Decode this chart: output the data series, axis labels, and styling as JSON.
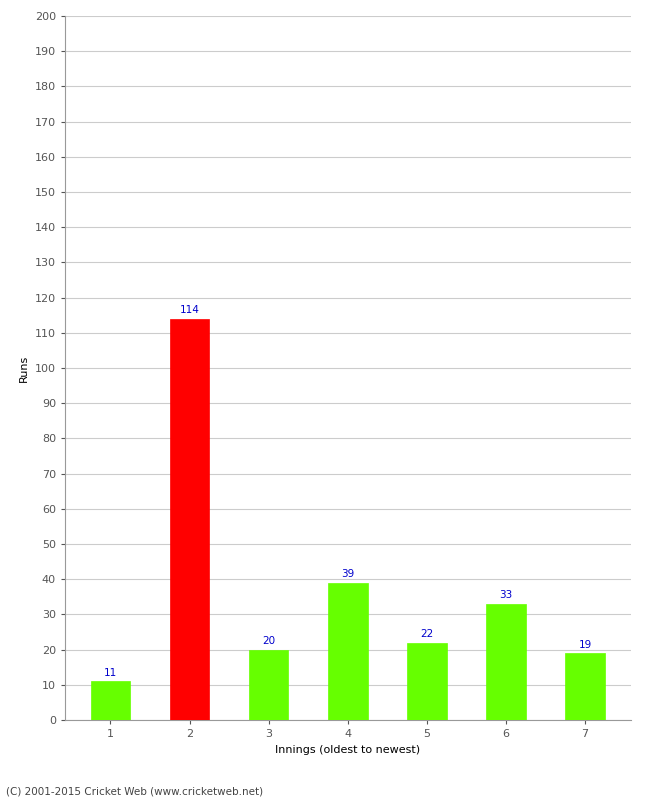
{
  "categories": [
    "1",
    "2",
    "3",
    "4",
    "5",
    "6",
    "7"
  ],
  "values": [
    11,
    114,
    20,
    39,
    22,
    33,
    19
  ],
  "bar_colors": [
    "#66ff00",
    "#ff0000",
    "#66ff00",
    "#66ff00",
    "#66ff00",
    "#66ff00",
    "#66ff00"
  ],
  "xlabel": "Innings (oldest to newest)",
  "ylabel": "Runs",
  "ylim": [
    0,
    200
  ],
  "yticks": [
    0,
    10,
    20,
    30,
    40,
    50,
    60,
    70,
    80,
    90,
    100,
    110,
    120,
    130,
    140,
    150,
    160,
    170,
    180,
    190,
    200
  ],
  "label_color": "#0000cc",
  "label_fontsize": 7.5,
  "axis_fontsize": 8,
  "xlabel_fontsize": 8,
  "ylabel_fontsize": 8,
  "background_color": "#ffffff",
  "grid_color": "#cccccc",
  "footer": "(C) 2001-2015 Cricket Web (www.cricketweb.net)",
  "footer_fontsize": 7.5,
  "bar_width": 0.5
}
